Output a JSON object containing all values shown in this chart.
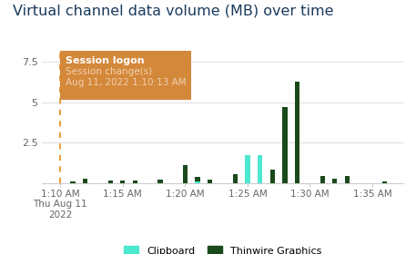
{
  "title": "Virtual channel data volume (MB) over time",
  "title_color": "#1a3a5c",
  "background_color": "#ffffff",
  "ylim": [
    0,
    8.2
  ],
  "yticks": [
    2.5,
    5.0,
    7.5
  ],
  "ytick_labels": [
    "2.5",
    "5",
    "7.5"
  ],
  "xtick_positions": [
    0,
    5,
    10,
    15,
    20,
    25
  ],
  "xtick_labels": [
    "1:10 AM\nThu Aug 11\n2022",
    "1:15 AM",
    "1:20 AM",
    "1:25 AM",
    "1:30 AM",
    "1:35 AM"
  ],
  "grid_color": "#dddddd",
  "annotation_box_color": "#d4883a",
  "annotation_title": "Session logon",
  "annotation_line1": "Session change(s)",
  "annotation_line2": "Aug 11, 2022 1:10:13 AM",
  "annotation_title_color": "#ffffff",
  "annotation_text_color": "#f0d0b0",
  "dashed_line_color": "#e8a040",
  "clipboard_color": "#4de8d0",
  "thinwire_color": "#1a4a1a",
  "legend_labels": [
    "Clipboard",
    "Thinwire Graphics"
  ],
  "bars": [
    {
      "time": 110,
      "clipboard": 0.0,
      "thinwire": 0.0
    },
    {
      "time": 111,
      "clipboard": 0.0,
      "thinwire": 0.1
    },
    {
      "time": 112,
      "clipboard": 0.0,
      "thinwire": 0.25
    },
    {
      "time": 113,
      "clipboard": 0.0,
      "thinwire": 0.0
    },
    {
      "time": 114,
      "clipboard": 0.0,
      "thinwire": 0.15
    },
    {
      "time": 115,
      "clipboard": 0.0,
      "thinwire": 0.15
    },
    {
      "time": 116,
      "clipboard": 0.0,
      "thinwire": 0.12
    },
    {
      "time": 117,
      "clipboard": 0.0,
      "thinwire": 0.0
    },
    {
      "time": 118,
      "clipboard": 0.0,
      "thinwire": 0.18
    },
    {
      "time": 119,
      "clipboard": 0.0,
      "thinwire": 0.0
    },
    {
      "time": 120,
      "clipboard": 0.0,
      "thinwire": 1.1
    },
    {
      "time": 121,
      "clipboard": 0.08,
      "thinwire": 0.35
    },
    {
      "time": 122,
      "clipboard": 0.0,
      "thinwire": 0.2
    },
    {
      "time": 123,
      "clipboard": 0.0,
      "thinwire": 0.0
    },
    {
      "time": 124,
      "clipboard": 0.0,
      "thinwire": 0.55
    },
    {
      "time": 125,
      "clipboard": 1.75,
      "thinwire": 0.3
    },
    {
      "time": 126,
      "clipboard": 1.75,
      "thinwire": 0.35
    },
    {
      "time": 127,
      "clipboard": 0.0,
      "thinwire": 0.85
    },
    {
      "time": 128,
      "clipboard": 0.0,
      "thinwire": 4.7
    },
    {
      "time": 129,
      "clipboard": 0.0,
      "thinwire": 6.3
    },
    {
      "time": 130,
      "clipboard": 0.0,
      "thinwire": 0.0
    },
    {
      "time": 131,
      "clipboard": 0.0,
      "thinwire": 0.45
    },
    {
      "time": 132,
      "clipboard": 0.0,
      "thinwire": 0.28
    },
    {
      "time": 133,
      "clipboard": 0.0,
      "thinwire": 0.45
    },
    {
      "time": 134,
      "clipboard": 0.0,
      "thinwire": 0.0
    },
    {
      "time": 135,
      "clipboard": 0.0,
      "thinwire": 0.0
    },
    {
      "time": 136,
      "clipboard": 0.0,
      "thinwire": 0.08
    }
  ]
}
